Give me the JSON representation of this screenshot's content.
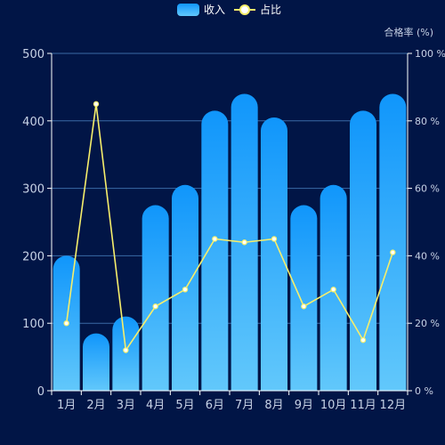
{
  "chart_data": {
    "type": "bar",
    "categories": [
      "1月",
      "2月",
      "3月",
      "4月",
      "5月",
      "6月",
      "7月",
      "8月",
      "9月",
      "10月",
      "11月",
      "12月"
    ],
    "series": [
      {
        "name": "收入",
        "type": "bar",
        "axis": "left",
        "values": [
          200,
          85,
          110,
          275,
          305,
          415,
          440,
          405,
          275,
          305,
          415,
          440
        ],
        "color_top": "#1096fb",
        "color_bottom": "#62c8fb"
      },
      {
        "name": "占比",
        "type": "line",
        "axis": "right",
        "values": [
          20,
          85,
          12,
          25,
          30,
          45,
          44,
          45,
          25,
          30,
          15,
          41
        ],
        "color": "#f6ee6b"
      }
    ],
    "y_left": {
      "ylim": [
        0,
        500
      ],
      "ticks": [
        0,
        100,
        200,
        300,
        400,
        500
      ]
    },
    "y_right": {
      "label": "合格率 (%)",
      "ylim": [
        0,
        100
      ],
      "ticks": [
        0,
        20,
        40,
        60,
        80,
        100
      ],
      "tick_suffix": " %"
    },
    "grid": true,
    "legend_position": "top-center",
    "colors": {
      "background": "#011546",
      "grid": "#3a6aa6",
      "axis_text": "#c8d2e6"
    }
  }
}
